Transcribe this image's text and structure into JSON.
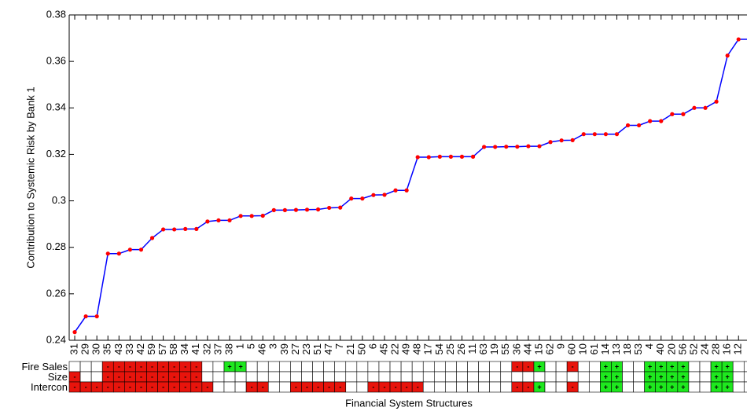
{
  "chart_data": {
    "type": "line",
    "y_label": "Contribution to Systemic Risk by Bank 1",
    "x_label": "Financial System Structures",
    "categories": [
      "31",
      "29",
      "30",
      "35",
      "43",
      "33",
      "42",
      "59",
      "57",
      "58",
      "34",
      "41",
      "32",
      "37",
      "38",
      "1",
      "5",
      "46",
      "3",
      "39",
      "27",
      "23",
      "51",
      "47",
      "7",
      "21",
      "50",
      "6",
      "45",
      "22",
      "49",
      "48",
      "17",
      "54",
      "25",
      "26",
      "11",
      "63",
      "19",
      "55",
      "36",
      "44",
      "15",
      "62",
      "9",
      "60",
      "10",
      "61",
      "14",
      "13",
      "18",
      "53",
      "4",
      "40",
      "20",
      "56",
      "52",
      "24",
      "28",
      "16",
      "12",
      null
    ],
    "values": [
      0.2435,
      0.2503,
      0.2503,
      0.2773,
      0.2773,
      0.279,
      0.279,
      0.284,
      0.2877,
      0.2877,
      0.2879,
      0.2879,
      0.2911,
      0.2916,
      0.2916,
      0.2935,
      0.2935,
      0.2936,
      0.296,
      0.296,
      0.2961,
      0.2962,
      0.2963,
      0.297,
      0.2971,
      0.301,
      0.301,
      0.3025,
      0.3026,
      0.3045,
      0.3045,
      0.3188,
      0.3188,
      0.319,
      0.319,
      0.319,
      0.319,
      0.3232,
      0.3232,
      0.3233,
      0.3233,
      0.3235,
      0.3235,
      0.3253,
      0.326,
      0.3261,
      0.3287,
      0.3287,
      0.3287,
      0.3287,
      0.3325,
      0.3325,
      0.3343,
      0.3343,
      0.3373,
      0.3373,
      0.34,
      0.34,
      0.3427,
      0.3625,
      0.3695,
      0.3695
    ],
    "color": "#0000ff",
    "marker_color": "#ff0000",
    "ylim": [
      0.24,
      0.38
    ],
    "yticks": [
      0.24,
      0.26,
      0.28,
      0.3,
      0.32,
      0.34,
      0.36,
      0.38
    ],
    "grid": false,
    "structure_table": {
      "minus_color": "#e8140c",
      "plus_color": "#1ee81e",
      "rows": [
        {
          "label": "Fire Sales",
          "cells": [
            null,
            null,
            null,
            "-",
            "-",
            "-",
            "-",
            "-",
            "-",
            "-",
            "-",
            "-",
            null,
            null,
            "+",
            "+",
            null,
            null,
            null,
            null,
            null,
            null,
            null,
            null,
            null,
            null,
            null,
            null,
            null,
            null,
            null,
            null,
            null,
            null,
            null,
            null,
            null,
            null,
            null,
            null,
            "-",
            "-",
            "+",
            null,
            null,
            "-",
            null,
            null,
            "+",
            "+",
            null,
            null,
            "+",
            "+",
            "+",
            "+",
            null,
            null,
            "+",
            "+",
            null,
            null
          ]
        },
        {
          "label": "Size",
          "cells": [
            "-",
            null,
            null,
            "-",
            "-",
            "-",
            "-",
            "-",
            "-",
            "-",
            "-",
            "-",
            null,
            null,
            null,
            null,
            null,
            null,
            null,
            null,
            null,
            null,
            null,
            null,
            null,
            null,
            null,
            null,
            null,
            null,
            null,
            null,
            null,
            null,
            null,
            null,
            null,
            null,
            null,
            null,
            null,
            null,
            null,
            null,
            null,
            null,
            null,
            null,
            "+",
            "+",
            null,
            null,
            "+",
            "+",
            "+",
            "+",
            null,
            null,
            "+",
            "+",
            null,
            null
          ]
        },
        {
          "label": "Intercon",
          "cells": [
            "-",
            "-",
            "-",
            "-",
            "-",
            "-",
            "-",
            "-",
            "-",
            "-",
            "-",
            "-",
            "-",
            null,
            null,
            null,
            "-",
            "-",
            null,
            null,
            "-",
            "-",
            "-",
            "-",
            "-",
            null,
            null,
            "-",
            "-",
            "-",
            "-",
            "-",
            null,
            null,
            null,
            null,
            null,
            null,
            null,
            null,
            "-",
            "-",
            "+",
            null,
            null,
            "-",
            null,
            null,
            "+",
            "+",
            null,
            null,
            "+",
            "+",
            "+",
            "+",
            null,
            null,
            "+",
            "+",
            null,
            null
          ]
        }
      ]
    }
  }
}
